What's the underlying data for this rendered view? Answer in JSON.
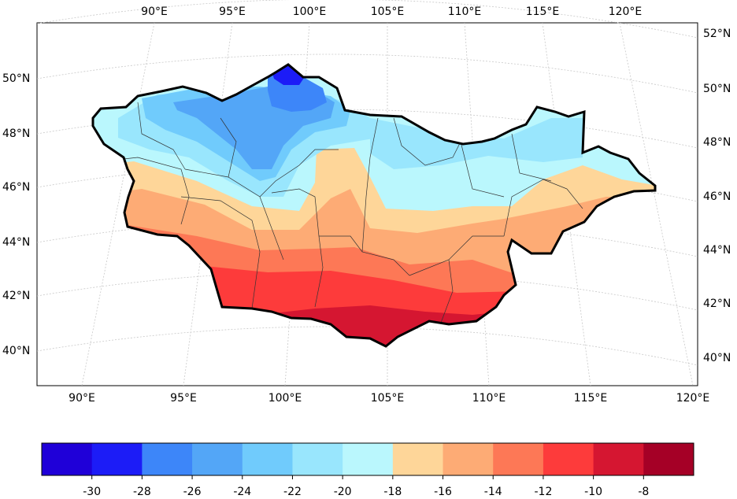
{
  "map": {
    "top_lon_labels": [
      "90°E",
      "95°E",
      "100°E",
      "105°E",
      "110°E",
      "115°E",
      "120°E"
    ],
    "bottom_lon_labels": [
      "90°E",
      "95°E",
      "100°E",
      "105°E",
      "110°E",
      "115°E",
      "120°E"
    ],
    "left_lat_labels": [
      "50°N",
      "48°N",
      "46°N",
      "44°N",
      "42°N",
      "40°N"
    ],
    "right_lat_labels": [
      "52°N",
      "50°N",
      "48°N",
      "46°N",
      "44°N",
      "42°N",
      "40°N"
    ],
    "gridlines": true,
    "country_border_color": "#000000"
  },
  "colorbar": {
    "colors": [
      "#1f00d8",
      "#1c1cf7",
      "#3d86f9",
      "#53a6f7",
      "#70cbfc",
      "#99e6fd",
      "#baf7fd",
      "#fed699",
      "#fdab75",
      "#fd7856",
      "#fd3b3b",
      "#d51631",
      "#a50026"
    ],
    "tick_labels": [
      "-30",
      "-28",
      "-26",
      "-24",
      "-22",
      "-20",
      "-18",
      "-16",
      "-14",
      "-12",
      "-10",
      "-8"
    ]
  }
}
